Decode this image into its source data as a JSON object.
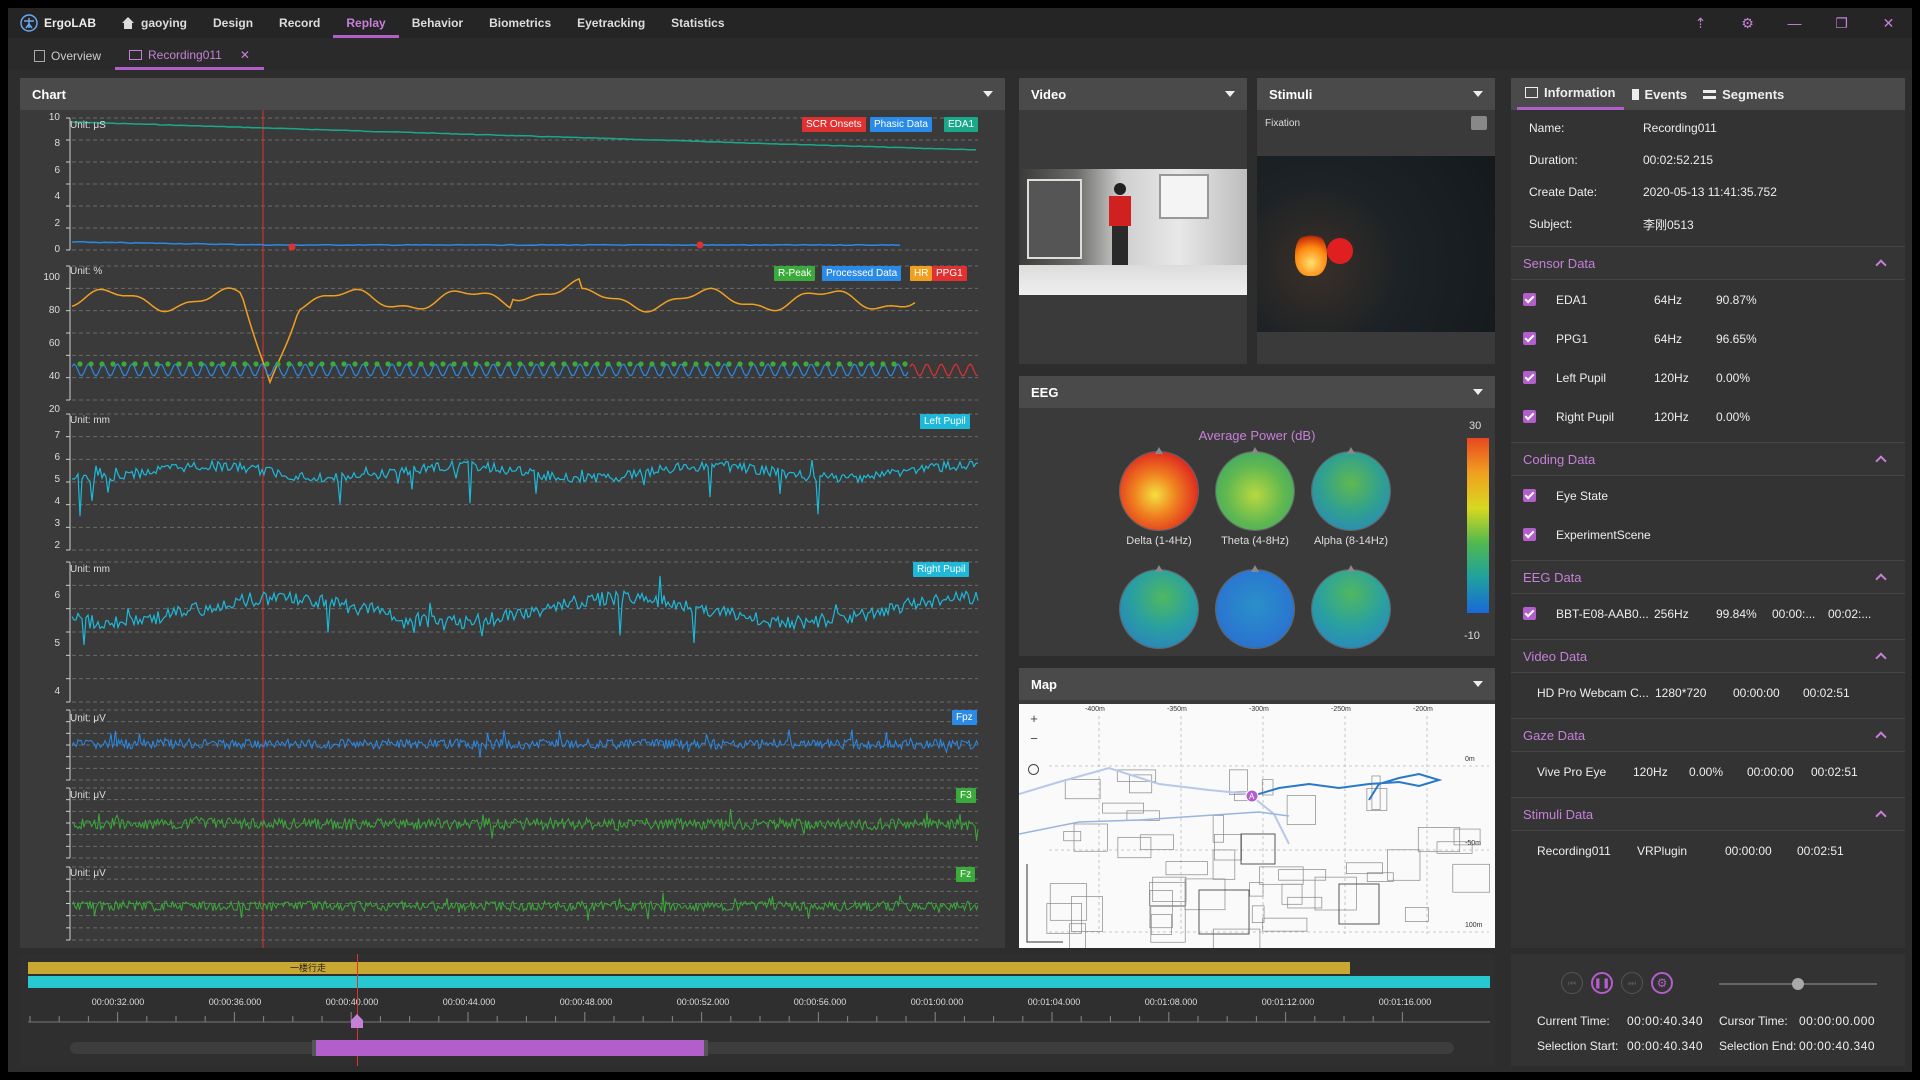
{
  "app": {
    "name": "ErgoLAB"
  },
  "menu": {
    "user": "gaoying",
    "items": [
      "Design",
      "Record",
      "Replay",
      "Behavior",
      "Biometrics",
      "Eyetracking",
      "Statistics"
    ],
    "active": "Replay"
  },
  "tabs": [
    {
      "label": "Overview"
    },
    {
      "label": "Recording011"
    }
  ],
  "chart_panel": {
    "title": "Chart",
    "eda": {
      "unit": "Unit: μS",
      "yticks": [
        "10",
        "8",
        "6",
        "4",
        "2",
        "0"
      ],
      "tags": [
        "SCR Onsets",
        "Phasic Data",
        "EDA1"
      ]
    },
    "ppg": {
      "unit": "Unit: %",
      "yticks": [
        "100",
        "80",
        "60",
        "40",
        "20"
      ],
      "tags": [
        "R-Peak",
        "Processed Data",
        "HR",
        "PPG1"
      ]
    },
    "left_pupil": {
      "unit": "Unit: mm",
      "yticks": [
        "7",
        "6",
        "5",
        "4",
        "3",
        "2"
      ],
      "tags": [
        "Left Pupil"
      ]
    },
    "right_pupil": {
      "unit": "Unit: mm",
      "yticks": [
        "6",
        "5",
        "4"
      ],
      "tags": [
        "Right Pupil"
      ]
    },
    "fpz": {
      "unit": "Unit: μV",
      "tags": [
        "Fpz"
      ]
    },
    "f3": {
      "unit": "Unit: μV",
      "tags": [
        "F3"
      ]
    },
    "fz": {
      "unit": "Unit: μV",
      "tags": [
        "Fz"
      ]
    }
  },
  "video_panel": {
    "title": "Video"
  },
  "stimuli_panel": {
    "title": "Stimuli",
    "label": "Fixation"
  },
  "eeg_panel": {
    "title": "EEG",
    "heading": "Average Power (dB)",
    "scale_max": "30",
    "scale_min": "-10",
    "maps": [
      {
        "label": "Delta (1-4Hz)"
      },
      {
        "label": "Theta (4-8Hz)"
      },
      {
        "label": "Alpha (8-14Hz)"
      },
      {
        "label": ""
      },
      {
        "label": ""
      },
      {
        "label": ""
      }
    ]
  },
  "map_panel": {
    "title": "Map",
    "xticks": [
      "-400m",
      "-350m",
      "-300m",
      "-250m",
      "-200m"
    ],
    "yticks": [
      "0m",
      "-50m",
      "100m"
    ],
    "zoom_in": "+",
    "zoom_out": "−",
    "marker": "A"
  },
  "info": {
    "tabs": [
      "Information",
      "Events",
      "Segments"
    ],
    "fields": [
      {
        "k": "Name:",
        "v": "Recording011"
      },
      {
        "k": "Duration:",
        "v": "00:02:52.215"
      },
      {
        "k": "Create Date:",
        "v": "2020-05-13 11:41:35.752"
      },
      {
        "k": "Subject:",
        "v": "李刚0513"
      }
    ],
    "sensor": {
      "title": "Sensor Data",
      "rows": [
        {
          "name": "EDA1",
          "rate": "64Hz",
          "pct": "90.87%"
        },
        {
          "name": "PPG1",
          "rate": "64Hz",
          "pct": "96.65%"
        },
        {
          "name": "Left Pupil",
          "rate": "120Hz",
          "pct": "0.00%"
        },
        {
          "name": "Right Pupil",
          "rate": "120Hz",
          "pct": "0.00%"
        }
      ]
    },
    "coding": {
      "title": "Coding Data",
      "rows": [
        "Eye State",
        "ExperimentScene"
      ]
    },
    "eeg": {
      "title": "EEG Data",
      "row": {
        "name": "BBT-E08-AAB0...",
        "rate": "256Hz",
        "pct": "99.84%",
        "start": "00:00:...",
        "end": "00:02:..."
      }
    },
    "video": {
      "title": "Video Data",
      "row": {
        "name": "HD Pro Webcam C...",
        "res": "1280*720",
        "start": "00:00:00",
        "end": "00:02:51"
      }
    },
    "gaze": {
      "title": "Gaze Data",
      "row": {
        "name": "Vive Pro Eye",
        "rate": "120Hz",
        "pct": "0.00%",
        "start": "00:00:00",
        "end": "00:02:51"
      }
    },
    "stimuli": {
      "title": "Stimuli Data",
      "row": {
        "name": "Recording011",
        "plugin": "VRPlugin",
        "start": "00:00:00",
        "end": "00:02:51"
      }
    }
  },
  "timeline": {
    "segment_label": "一楼行走",
    "ticks": [
      "00:00:32.000",
      "00:00:36.000",
      "00:00:40.000",
      "00:00:44.000",
      "00:00:48.000",
      "00:00:52.000",
      "00:00:56.000",
      "00:01:00.000",
      "00:01:04.000",
      "00:01:08.000",
      "00:01:12.000",
      "00:01:16.000"
    ]
  },
  "playback": {
    "current_time_label": "Current Time:",
    "current_time": "00:00:40.340",
    "cursor_time_label": "Cursor Time:",
    "cursor_time": "00:00:00.000",
    "sel_start_label": "Selection Start:",
    "sel_start": "00:00:40.340",
    "sel_end_label": "Selection End:",
    "sel_end": "00:00:40.340",
    "volume": 0.5
  },
  "colors": {
    "accent": "#b25fcc",
    "eda": "#1aa88a",
    "phasic": "#2a8ae8",
    "ppg": "#f0a020",
    "pupil": "#1eb8d8",
    "eeg_blue": "#2a8ae8",
    "eeg_green": "#3aaa3a",
    "scr": "#e03030"
  }
}
